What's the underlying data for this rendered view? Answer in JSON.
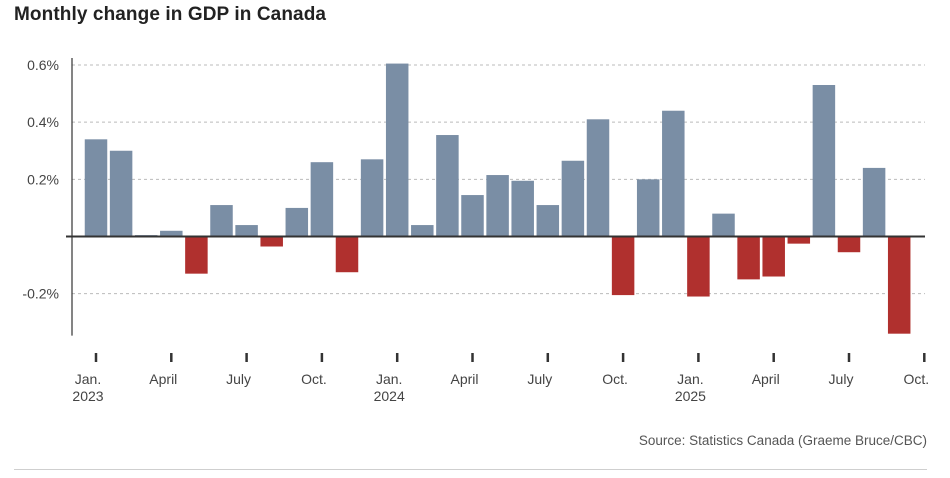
{
  "chart_data": {
    "type": "bar",
    "title": "Monthly change in GDP in Canada",
    "source": "Source: Statistics Canada (Graeme Bruce/CBC)",
    "ylim": [
      -0.34,
      0.62
    ],
    "y_ticks": [
      {
        "value": 0.6,
        "label": "0.6%"
      },
      {
        "value": 0.4,
        "label": "0.4%"
      },
      {
        "value": 0.2,
        "label": "0.2%"
      },
      {
        "value": -0.2,
        "label": "-0.2%"
      }
    ],
    "x_ticks": [
      {
        "index": 0,
        "label": "Jan.",
        "year": "2023"
      },
      {
        "index": 3,
        "label": "April",
        "year": ""
      },
      {
        "index": 6,
        "label": "July",
        "year": ""
      },
      {
        "index": 9,
        "label": "Oct.",
        "year": ""
      },
      {
        "index": 12,
        "label": "Jan.",
        "year": "2024"
      },
      {
        "index": 15,
        "label": "April",
        "year": ""
      },
      {
        "index": 18,
        "label": "July",
        "year": ""
      },
      {
        "index": 21,
        "label": "Oct.",
        "year": ""
      },
      {
        "index": 24,
        "label": "Jan.",
        "year": "2025"
      },
      {
        "index": 27,
        "label": "April",
        "year": ""
      },
      {
        "index": 30,
        "label": "July",
        "year": ""
      },
      {
        "index": 33,
        "label": "Oct.",
        "year": ""
      }
    ],
    "grid": true,
    "colors": {
      "positive": "#7a8ea5",
      "negative": "#b0302e",
      "grid": "#bbbbbb",
      "axis": "#333333"
    },
    "values": [
      0.34,
      0.3,
      0.005,
      0.02,
      -0.13,
      0.11,
      0.04,
      -0.035,
      0.1,
      0.26,
      -0.125,
      0.27,
      0.605,
      0.04,
      0.355,
      0.145,
      0.215,
      0.195,
      0.11,
      0.265,
      0.41,
      -0.205,
      0.2,
      0.44,
      -0.21,
      0.08,
      -0.15,
      -0.14,
      -0.025,
      0.53,
      -0.055,
      0.24,
      -0.34
    ]
  }
}
